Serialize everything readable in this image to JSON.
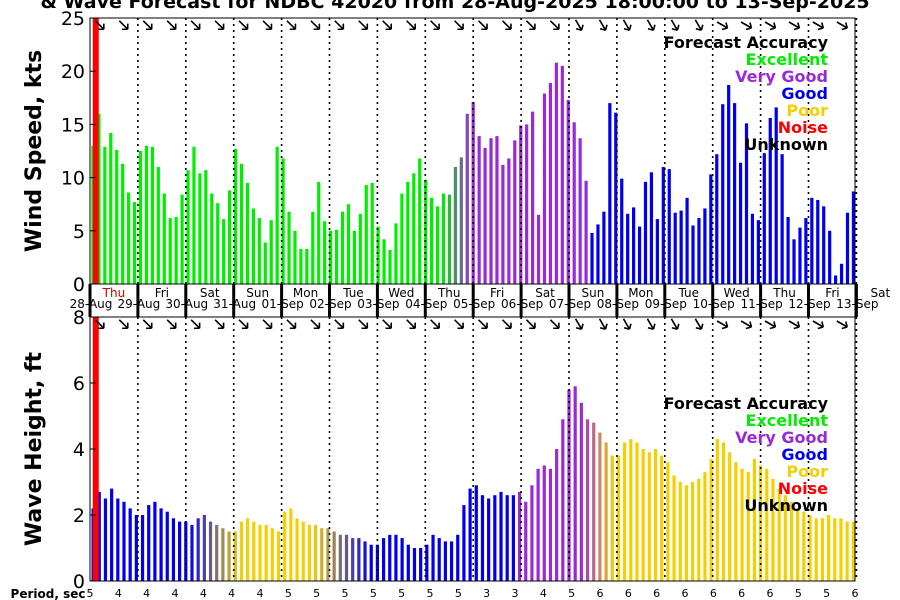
{
  "title": "& Wave Forecast for NDBC 42020 from 28-Aug-2025 18:00:00 to 13-Sep-2025",
  "colors": {
    "excellent": "#00ee00",
    "very_good": "#9a2ad8",
    "good": "#0000ee",
    "poor": "#f5d000",
    "noise": "#ff0000",
    "unknown": "#000000"
  },
  "legend": {
    "title": "Forecast Accuracy",
    "items": [
      {
        "label": "Excellent",
        "key": "excellent"
      },
      {
        "label": "Very Good",
        "key": "very_good"
      },
      {
        "label": "Good",
        "key": "good"
      },
      {
        "label": "Poor",
        "key": "poor"
      },
      {
        "label": "Noise",
        "key": "noise"
      },
      {
        "label": "Unknown",
        "key": "unknown"
      }
    ]
  },
  "day_labels": [
    {
      "day": "Thu",
      "date": "28-Aug",
      "style": "now"
    },
    {
      "day": "Fri",
      "date": "29-Aug"
    },
    {
      "day": "Sat",
      "date": "30-Aug"
    },
    {
      "day": "Sun",
      "date": "31-Aug"
    },
    {
      "day": "Mon",
      "date": "01-Sep"
    },
    {
      "day": "Tue",
      "date": "02-Sep"
    },
    {
      "day": "Wed",
      "date": "03-Sep"
    },
    {
      "day": "Thu",
      "date": "04-Sep"
    },
    {
      "day": "Fri",
      "date": "05-Sep"
    },
    {
      "day": "Sat",
      "date": "06-Sep"
    },
    {
      "day": "Sun",
      "date": "07-Sep"
    },
    {
      "day": "Mon",
      "date": "08-Sep"
    },
    {
      "day": "Tue",
      "date": "09-Sep"
    },
    {
      "day": "Wed",
      "date": "10-Sep"
    },
    {
      "day": "Thu",
      "date": "11-Sep"
    },
    {
      "day": "Fri",
      "date": "12-Sep"
    },
    {
      "day": "Sat",
      "date": "13-Sep"
    }
  ],
  "period_label": "Period, sec",
  "period_values": [
    5,
    4,
    4,
    4,
    4,
    4,
    4,
    5,
    5,
    5,
    5,
    5,
    5,
    5,
    3,
    3,
    4,
    5,
    6,
    6,
    6,
    6,
    6,
    6,
    6,
    5,
    5,
    6
  ],
  "chart_data": [
    {
      "type": "bar",
      "name": "wind",
      "title": "& Wave Forecast for NDBC 42020 from 28-Aug-2025 18:00:00 to 13-Sep-2025",
      "ylabel": "Wind Speed, kts",
      "ylim": [
        0,
        25
      ],
      "yticks": [
        0,
        5,
        10,
        15,
        20,
        25
      ],
      "xrange_days": [
        0,
        16
      ],
      "now_day": 0.12,
      "segments": [
        {
          "from": 0,
          "to": 7.35,
          "color": "excellent"
        },
        {
          "from": 7.35,
          "to": 7.95,
          "color": "transition_green_purple"
        },
        {
          "from": 7.95,
          "to": 10.45,
          "color": "very_good"
        },
        {
          "from": 10.45,
          "to": 16.1,
          "color": "good"
        }
      ],
      "values": [
        13,
        16,
        12.9,
        14.2,
        12.6,
        11.3,
        8.6,
        7.7,
        12.5,
        13,
        12.9,
        11,
        8.5,
        6.2,
        6.3,
        8.4,
        10.7,
        12.9,
        10.4,
        10.7,
        8.5,
        7.6,
        6.1,
        8.8,
        12.7,
        11.3,
        9.5,
        7.1,
        6.2,
        3.9,
        6,
        12.9,
        11.8,
        6.8,
        5,
        3.3,
        3.3,
        6.8,
        9.6,
        5.9,
        5,
        5.1,
        6.8,
        7.5,
        5,
        6.6,
        9.3,
        9.5,
        5.4,
        4.2,
        3.2,
        5.7,
        8.5,
        9.6,
        10.4,
        11.8,
        9.8,
        8.1,
        7.3,
        8.5,
        8.4,
        11,
        11.9,
        16,
        17.1,
        13.9,
        12.8,
        13.7,
        13.9,
        11.2,
        11.8,
        13.5,
        14.9,
        15,
        16.2,
        6.5,
        17.9,
        18.9,
        20.8,
        20.5,
        17.3,
        15.2,
        13.7,
        9.7,
        4.8,
        5.6,
        6.8,
        17,
        16.1,
        9.9,
        6.6,
        7.2,
        5.4,
        9.6,
        10.5,
        6.1,
        11,
        10.8,
        6.7,
        6.9,
        8.1,
        5.5,
        6.2,
        7.1,
        10.3,
        12.2,
        16.9,
        18.7,
        17,
        11.4,
        15.1,
        6.6,
        6,
        12.3,
        15.6,
        16.6,
        12.2,
        6.3,
        4.2,
        5.3,
        6.2,
        8.1,
        7.9,
        7.3,
        5,
        0.8,
        1.9,
        6.7,
        8.7
      ]
    },
    {
      "type": "bar",
      "name": "waves",
      "ylabel": "Wave Height, ft",
      "ylim": [
        0,
        8
      ],
      "yticks": [
        0,
        2,
        4,
        6,
        8
      ],
      "xrange_days": [
        0,
        16
      ],
      "now_day": 0.12,
      "segments": [
        {
          "from": 0,
          "to": 2.05,
          "color": "good"
        },
        {
          "from": 2.05,
          "to": 3.15,
          "color": "transition_blue_yellow"
        },
        {
          "from": 3.15,
          "to": 4.65,
          "color": "poor"
        },
        {
          "from": 4.65,
          "to": 5.85,
          "color": "transition_yellow_blue"
        },
        {
          "from": 5.85,
          "to": 8.9,
          "color": "good"
        },
        {
          "from": 8.9,
          "to": 9.35,
          "color": "very_good"
        },
        {
          "from": 9.35,
          "to": 10.25,
          "color": "very_good"
        },
        {
          "from": 10.25,
          "to": 10.95,
          "color": "transition_purple_yellow"
        },
        {
          "from": 10.95,
          "to": 16.1,
          "color": "poor"
        }
      ],
      "values": [
        2.2,
        2.7,
        2.5,
        2.8,
        2.5,
        2.4,
        2.2,
        2,
        2,
        2.3,
        2.4,
        2.2,
        2.1,
        1.9,
        1.8,
        1.8,
        1.7,
        1.9,
        2,
        1.8,
        1.7,
        1.6,
        1.5,
        1.5,
        1.8,
        1.9,
        1.8,
        1.7,
        1.7,
        1.6,
        1.5,
        2.1,
        2.2,
        1.9,
        1.8,
        1.7,
        1.7,
        1.6,
        1.6,
        1.5,
        1.4,
        1.4,
        1.3,
        1.3,
        1.2,
        1.1,
        1.1,
        1.3,
        1.4,
        1.4,
        1.3,
        1.1,
        1,
        1,
        1.1,
        1.4,
        1.3,
        1.2,
        1.2,
        1.4,
        2.3,
        2.8,
        2.9,
        2.6,
        2.5,
        2.6,
        2.7,
        2.6,
        2.6,
        2.7,
        2.4,
        2.9,
        3.4,
        3.5,
        3.4,
        4,
        4.9,
        5.8,
        5.9,
        5.4,
        4.9,
        4.8,
        4.5,
        4.2,
        3.8,
        3.8,
        4.2,
        4.3,
        4.2,
        4,
        3.9,
        4,
        3.8,
        3.6,
        3.2,
        3,
        2.9,
        3,
        3.1,
        3.3,
        3.7,
        4.3,
        4.2,
        3.9,
        3.6,
        3.4,
        3.3,
        3.7,
        3.5,
        3.4,
        3.1,
        2.8,
        2.6,
        2.4,
        2.2,
        2.1,
        2,
        1.9,
        1.9,
        2,
        1.9,
        1.9,
        1.8,
        1.8
      ]
    }
  ]
}
